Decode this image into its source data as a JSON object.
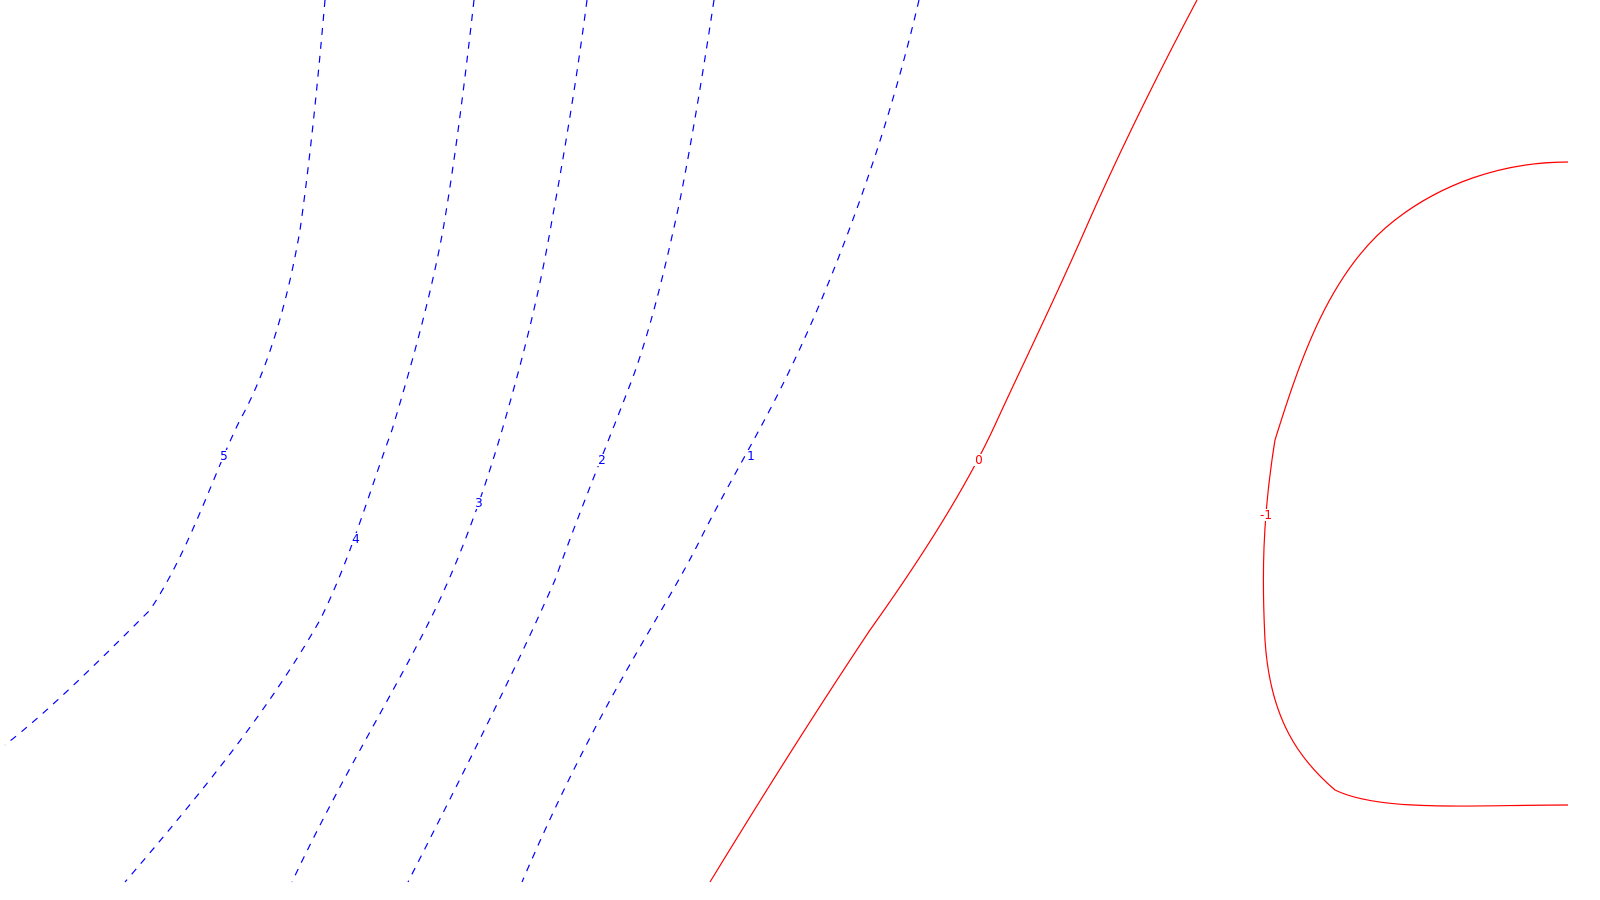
{
  "chart_data": {
    "type": "contour",
    "colors": {
      "positive": "#0000ff",
      "zero": "#ff0000",
      "negative": "#ff0000",
      "background": "#ffffff"
    },
    "linestyles": {
      "positive": "dashed",
      "zero": "solid",
      "negative": "solid"
    },
    "levels": [
      {
        "value": 5,
        "label": "5",
        "sign": "positive"
      },
      {
        "value": 4,
        "label": "4",
        "sign": "positive"
      },
      {
        "value": 3,
        "label": "3",
        "sign": "positive"
      },
      {
        "value": 2,
        "label": "2",
        "sign": "positive"
      },
      {
        "value": 1,
        "label": "1",
        "sign": "positive"
      },
      {
        "value": 0,
        "label": "0",
        "sign": "zero"
      },
      {
        "value": -1,
        "label": "-1",
        "sign": "negative"
      }
    ],
    "grid": false,
    "axes_visible": false
  }
}
